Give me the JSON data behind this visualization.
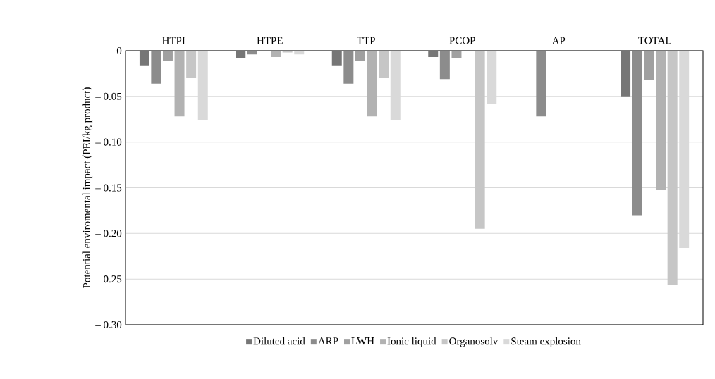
{
  "chart_data": {
    "type": "bar",
    "ylabel": "Potential enviromental impact (PEI/kg product)",
    "categories": [
      "HTPI",
      "HTPE",
      "TTP",
      "PCOP",
      "AP",
      "TOTAL"
    ],
    "series": [
      {
        "name": "Diluted acid",
        "color": "#767676",
        "values": [
          -0.016,
          -0.008,
          -0.016,
          -0.007,
          0,
          -0.05
        ]
      },
      {
        "name": "ARP",
        "color": "#8c8c8c",
        "values": [
          -0.036,
          -0.004,
          -0.036,
          -0.031,
          -0.072,
          -0.18
        ]
      },
      {
        "name": "LWH",
        "color": "#a0a0a0",
        "values": [
          -0.011,
          0,
          -0.011,
          -0.008,
          0,
          -0.032
        ]
      },
      {
        "name": "Ionic liquid",
        "color": "#b2b2b2",
        "values": [
          -0.072,
          -0.007,
          -0.072,
          0,
          0,
          -0.152
        ]
      },
      {
        "name": "Organosolv",
        "color": "#c6c6c6",
        "values": [
          -0.03,
          -0.002,
          -0.03,
          -0.195,
          0,
          -0.256
        ]
      },
      {
        "name": "Steam explosion",
        "color": "#d9d9d9",
        "values": [
          -0.076,
          -0.004,
          -0.076,
          -0.058,
          0,
          -0.216
        ]
      }
    ],
    "ylim": [
      -0.3,
      0
    ],
    "yticks": [
      {
        "value": -0.3,
        "label": "– 0.30"
      },
      {
        "value": -0.25,
        "label": "– 0.25"
      },
      {
        "value": -0.2,
        "label": "– 0.20"
      },
      {
        "value": -0.15,
        "label": "– 0.15"
      },
      {
        "value": -0.1,
        "label": "– 0.10"
      },
      {
        "value": -0.05,
        "label": "– 0.05"
      },
      0
    ],
    "grid": "y",
    "legend": "bottom"
  }
}
